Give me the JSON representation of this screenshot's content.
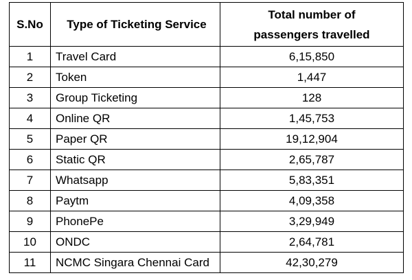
{
  "table": {
    "headers": {
      "sno": "S.No",
      "type": "Type of Ticketing Service",
      "total_line1": "Total number of",
      "total_line2": "passengers travelled"
    },
    "rows": [
      {
        "sno": "1",
        "type": "Travel Card",
        "total": "6,15,850"
      },
      {
        "sno": "2",
        "type": "Token",
        "total": "1,447"
      },
      {
        "sno": "3",
        "type": "Group Ticketing",
        "total": "128"
      },
      {
        "sno": "4",
        "type": "Online QR",
        "total": "1,45,753"
      },
      {
        "sno": "5",
        "type": "Paper QR",
        "total": "19,12,904"
      },
      {
        "sno": "6",
        "type": "Static QR",
        "total": "2,65,787"
      },
      {
        "sno": "7",
        "type": "Whatsapp",
        "total": "5,83,351"
      },
      {
        "sno": "8",
        "type": "Paytm",
        "total": "4,09,358"
      },
      {
        "sno": "9",
        "type": "PhonePe",
        "total": "3,29,949"
      },
      {
        "sno": "10",
        "type": "ONDC",
        "total": "2,64,781"
      },
      {
        "sno": "11",
        "type": "NCMC Singara Chennai Card",
        "total": "42,30,279"
      }
    ]
  }
}
